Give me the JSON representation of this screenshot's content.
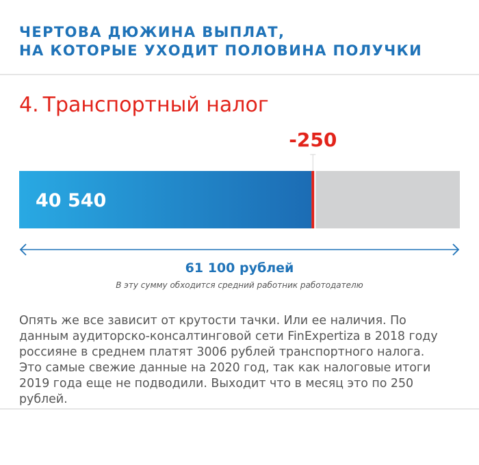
{
  "header": {
    "line1": "ЧЕРТОВА ДЮЖИНА ВЫПЛАТ,",
    "line2": "НА КОТОРЫЕ УХОДИТ ПОЛОВИНА ПОЛУЧКИ"
  },
  "section": {
    "number": "4.",
    "title": "Транспортный налог"
  },
  "chart_data": {
    "type": "bar",
    "orientation": "horizontal",
    "stacked": true,
    "total": 61100,
    "segments": [
      {
        "value": 40540,
        "label": "40 540",
        "color_start": "#29a9e3",
        "color_end": "#1c6cb4"
      },
      {
        "value": 250,
        "label": "-250",
        "color": "#e2231a"
      }
    ],
    "remainder_color": "#d1d2d3",
    "total_label": "61 100 рублей",
    "total_caption": "В эту сумму обходится средний работник работодателю"
  },
  "body": {
    "text": "Опять же все зависит от крутости тачки. Или ее наличия. По данным аудиторско-консалтинговой сети FinExpertiza в 2018 году россияне в среднем платят 3006 рублей транспортного налога. Это самые свежие данные на 2020 год, так как налоговые итоги 2019 года еще не подводили. Выходит что в месяц это по 250 рублей."
  },
  "colors": {
    "accent_blue": "#1f73b8",
    "accent_red": "#e2231a",
    "text_gray": "#555555"
  }
}
